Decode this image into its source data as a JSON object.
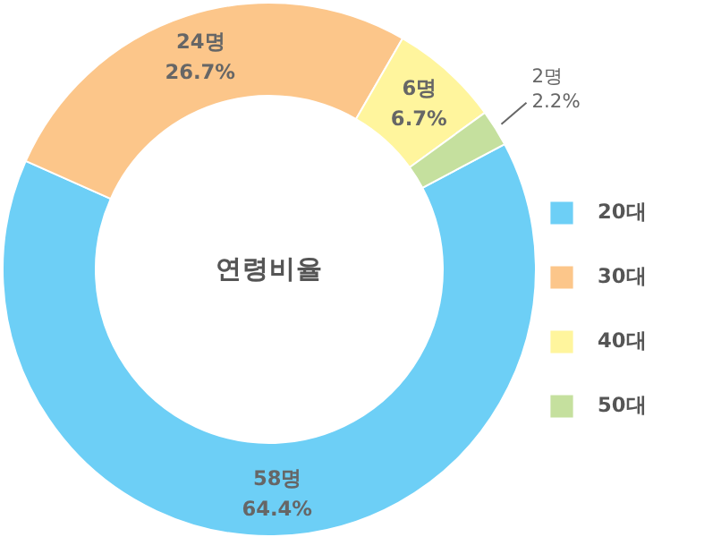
{
  "chart_data": {
    "type": "donut",
    "title": "연령비율",
    "categories": [
      "20대",
      "30대",
      "40대",
      "50대"
    ],
    "values": [
      58,
      24,
      6,
      2
    ],
    "value_labels": [
      "58명\n64.4%",
      "24명\n26.7%",
      "6명\n6.7%",
      "2명\n2.2%"
    ],
    "colors": [
      "#6dcff6",
      "#fcc68a",
      "#fff59d",
      "#c5e09e"
    ],
    "legend": "right"
  }
}
